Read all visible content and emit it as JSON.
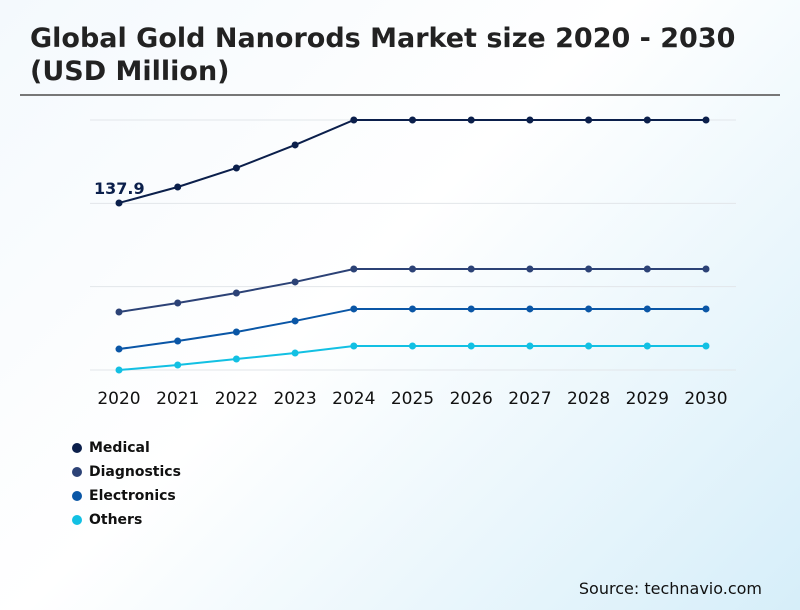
{
  "chart_data": {
    "type": "line",
    "title": "Global Gold Nanorods Market size 2020 - 2030 (USD Million)",
    "categories": [
      "2020",
      "2021",
      "2022",
      "2023",
      "2024",
      "2025",
      "2026",
      "2027",
      "2028",
      "2029",
      "2030"
    ],
    "series": [
      {
        "name": "Medical",
        "color": "#0b1f4b",
        "values": [
          137.9,
          151.1,
          166.8,
          185.8,
          206.4,
          206.4,
          206.4,
          206.4,
          206.4,
          206.4,
          206.4
        ]
      },
      {
        "name": "Diagnostics",
        "color": "#2c4276",
        "values": [
          47.9,
          55.3,
          63.6,
          72.7,
          83.4,
          83.4,
          83.4,
          83.4,
          83.4,
          83.4,
          83.4
        ]
      },
      {
        "name": "Electronics",
        "color": "#0a56a6",
        "values": [
          17.3,
          23.9,
          31.4,
          40.5,
          50.4,
          50.4,
          50.4,
          50.4,
          50.4,
          50.4,
          50.4
        ]
      },
      {
        "name": "Others",
        "color": "#12c0e3",
        "values": [
          0,
          4.1,
          9.1,
          14.0,
          19.8,
          19.8,
          19.8,
          19.8,
          19.8,
          19.8,
          19.8
        ]
      }
    ],
    "annotations": [
      {
        "series": "Medical",
        "category": "2020",
        "label": "137.9"
      }
    ],
    "ylim": [
      0,
      206.4
    ],
    "grid": true,
    "y_tick_labels_shown": false,
    "legend_placement": "bottom-left"
  },
  "source": "Source: technavio.com"
}
